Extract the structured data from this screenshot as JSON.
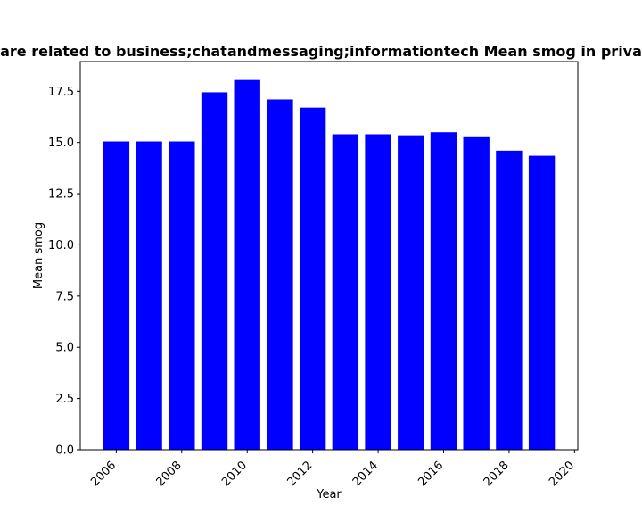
{
  "chart_data": {
    "type": "bar",
    "title": "are related to business;chatandmessaging;informationtech Mean smog in priva",
    "xlabel": "Year",
    "ylabel": "Mean smog",
    "x": [
      2006,
      2007,
      2008,
      2009,
      2010,
      2011,
      2012,
      2013,
      2014,
      2015,
      2016,
      2017,
      2018,
      2019
    ],
    "values": [
      15.05,
      15.05,
      15.05,
      17.45,
      18.05,
      17.1,
      16.7,
      15.4,
      15.4,
      15.35,
      15.5,
      15.3,
      14.6,
      14.35
    ],
    "xlim": [
      2004.9,
      2020.1
    ],
    "ylim": [
      0,
      18.95
    ],
    "xticks": [
      2006,
      2008,
      2010,
      2012,
      2014,
      2016,
      2018,
      2020
    ],
    "yticks": [
      "0.0",
      "2.5",
      "5.0",
      "7.5",
      "10.0",
      "12.5",
      "15.0",
      "17.5"
    ],
    "bar_color": "#0000ff",
    "grid": false,
    "legend": "none"
  }
}
